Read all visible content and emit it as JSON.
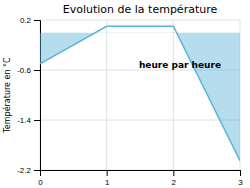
{
  "chart_data": {
    "type": "line",
    "title": "Evolution de la température",
    "ylabel": "Température en °C",
    "annotations": [
      {
        "text": "heure par heure"
      }
    ],
    "x": [
      0,
      1,
      2,
      3
    ],
    "series": [
      {
        "values": [
          -0.5,
          0.1,
          0.1,
          -2.05
        ],
        "color": "#5ab4d6",
        "baseline": 0
      }
    ],
    "xlim": [
      0,
      3
    ],
    "xticks": [
      0,
      1,
      2,
      3
    ],
    "ylim": [
      -2.2,
      0.2
    ],
    "yticks": [
      0.2,
      -0.6,
      -1.4,
      -2.2
    ],
    "grid": true
  }
}
